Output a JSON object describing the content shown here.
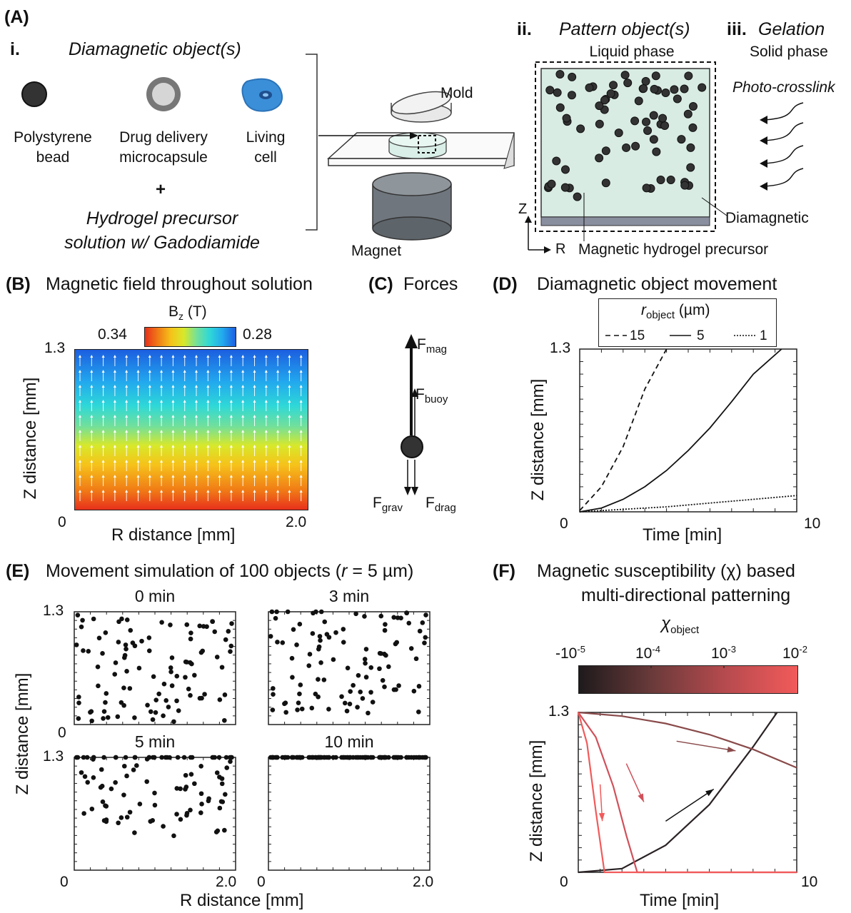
{
  "panelA": {
    "label": "(A)",
    "i_num": "i.",
    "i_title": "Diamagnetic object(s)",
    "obj1_line1": "Polystyrene",
    "obj1_line2": "bead",
    "obj2_line1": "Drug delivery",
    "obj2_line2": "microcapsule",
    "obj3_line1": "Living",
    "obj3_line2": "cell",
    "plus": "+",
    "precursor_line1": "Hydrogel precursor",
    "precursor_line2": "solution w/ Gadodiamide",
    "mold": "Mold",
    "magnet": "Magnet",
    "ii_num": "ii.",
    "ii_title": "Pattern object(s)",
    "ii_sub": "Liquid phase",
    "iii_num": "iii.",
    "iii_title": "Gelation",
    "iii_sub": "Solid phase",
    "photo": "Photo-crosslink",
    "diamagnetic": "Diamagnetic",
    "precursor_label": "Magnetic hydrogel precursor",
    "axis_z": "Z",
    "axis_r": "R"
  },
  "panelB": {
    "label": "(B)",
    "title": "Magnetic field throughout solution",
    "cbar_label": "B",
    "cbar_sub": "z",
    "cbar_unit": " (T)",
    "cbar_left": "0.34",
    "cbar_right": "0.28",
    "ylabel": "Z distance [mm]",
    "xlabel": "R distance [mm]",
    "ytick_top": "1.3",
    "xtick_left": "0",
    "xtick_right": "2.0",
    "colors": [
      "#e8301c",
      "#f07a16",
      "#f6c21a",
      "#d8e82a",
      "#73e09a",
      "#2ed8d8",
      "#22a8ee",
      "#1c5ee0"
    ]
  },
  "panelC": {
    "label": "(C)",
    "title": "Forces",
    "fmag": "F",
    "fmag_sub": "mag",
    "fbuoy": "F",
    "fbuoy_sub": "buoy",
    "fgrav": "F",
    "fgrav_sub": "grav",
    "fdrag": "F",
    "fdrag_sub": "drag"
  },
  "panelD": {
    "label": "(D)",
    "title": "Diamagnetic object movement",
    "legend_title": "r",
    "legend_sub": "object",
    "legend_unit": " (µm)",
    "series_labels": [
      "15",
      "5",
      "1"
    ],
    "ylabel": "Z distance [mm]",
    "xlabel": "Time [min]",
    "ytick_top": "1.3",
    "xtick_left": "0",
    "xtick_right": "10"
  },
  "panelE": {
    "label": "(E)",
    "title_pre": "Movement simulation of 100 objects (",
    "title_r": "r",
    "title_post": " = 5 µm)",
    "sub_titles": [
      "0 min",
      "3 min",
      "5 min",
      "10 min"
    ],
    "ylabel": "Z distance [mm]",
    "xlabel": "R distance [mm]",
    "ytick": "1.3",
    "ytick_zero": "0",
    "xtick_left": "0",
    "xtick_right": "2.0"
  },
  "panelF": {
    "label": "(F)",
    "title_line1": "Magnetic susceptibility (χ) based",
    "title_line2": "multi-directional patterning",
    "cbar_title": "χ",
    "cbar_sub": "object",
    "cbar_ticks": [
      "-10",
      "10",
      "10",
      "10"
    ],
    "cbar_exps": [
      "-5",
      "-4",
      "-3",
      "-2"
    ],
    "ylabel": "Z distance [mm]",
    "xlabel": "Time [min]",
    "ytick_top": "1.3",
    "xtick_left": "0",
    "xtick_right": "10"
  },
  "chart_data": [
    {
      "type": "line",
      "panel": "D",
      "title": "Diamagnetic object movement",
      "xlabel": "Time [min]",
      "ylabel": "Z distance [mm]",
      "xlim": [
        0,
        10
      ],
      "ylim": [
        0,
        1.3
      ],
      "series": [
        {
          "name": "15",
          "style": "dashed",
          "x": [
            0,
            1,
            2,
            3,
            4
          ],
          "y": [
            0.01,
            0.2,
            0.52,
            0.98,
            1.3
          ]
        },
        {
          "name": "5",
          "style": "solid",
          "x": [
            0,
            1,
            2,
            3,
            4,
            5,
            6,
            7,
            8,
            9.3
          ],
          "y": [
            0.0,
            0.03,
            0.1,
            0.2,
            0.33,
            0.49,
            0.67,
            0.88,
            1.1,
            1.3
          ]
        },
        {
          "name": "1",
          "style": "dotted",
          "x": [
            0,
            2,
            4,
            6,
            8,
            10
          ],
          "y": [
            0.0,
            0.02,
            0.04,
            0.07,
            0.1,
            0.13
          ]
        }
      ]
    },
    {
      "type": "line",
      "panel": "F",
      "xlabel": "Time [min]",
      "ylabel": "Z distance [mm]",
      "xlim": [
        0,
        10
      ],
      "ylim": [
        0,
        1.3
      ],
      "series": [
        {
          "chi": "-10^-5",
          "color": "#2a2224",
          "x": [
            0,
            2,
            4,
            6,
            8,
            9.1
          ],
          "y": [
            0.0,
            0.03,
            0.22,
            0.55,
            1.02,
            1.3
          ]
        },
        {
          "chi": "10^-4",
          "color": "#8a4a4a",
          "x": [
            0,
            2,
            4,
            6,
            8,
            10
          ],
          "y": [
            1.3,
            1.27,
            1.21,
            1.12,
            1.0,
            0.85
          ]
        },
        {
          "chi": "10^-3",
          "color": "#d0505a",
          "x": [
            0,
            0.8,
            1.6,
            2.2,
            2.7,
            10
          ],
          "y": [
            1.3,
            1.1,
            0.7,
            0.3,
            0.0,
            0.0
          ]
        },
        {
          "chi": "10^-2",
          "color": "#f25a5a",
          "x": [
            0,
            0.4,
            0.8,
            1.2,
            10
          ],
          "y": [
            1.3,
            1.05,
            0.5,
            0.0,
            0.0
          ]
        }
      ]
    }
  ]
}
